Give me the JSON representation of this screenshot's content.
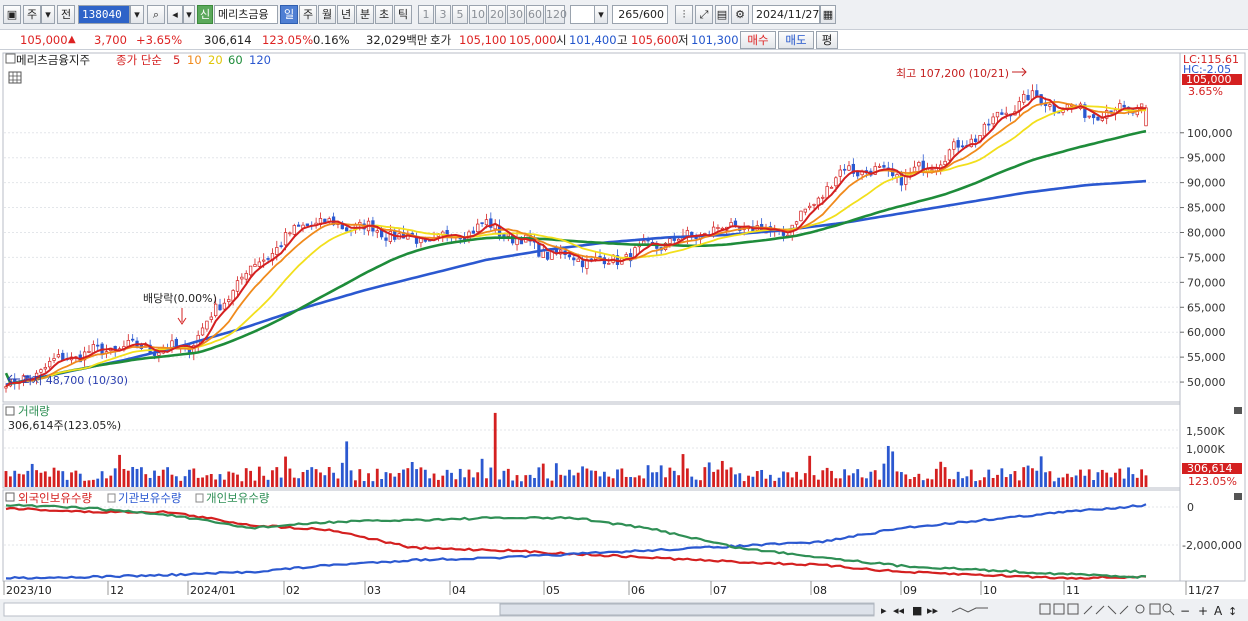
{
  "toolbar": {
    "chu_label": "주",
    "jeon_label": "전",
    "stock_code": "138040",
    "sin_label": "신",
    "stock_name": "메리츠금융",
    "periods": [
      "일",
      "주",
      "월",
      "년",
      "분",
      "초",
      "틱"
    ],
    "selected_period": "일",
    "intervals": [
      "1",
      "3",
      "5",
      "10",
      "20",
      "30",
      "60",
      "120"
    ],
    "count_current": "265",
    "count_total": "/600",
    "date": "2024/11/27"
  },
  "quote": {
    "price": "105,000",
    "change_arrow": "▲",
    "change": "3,700",
    "change_pct": "+3.65%",
    "volume": "306,614",
    "volume_ratio": "123.05%",
    "turnover": "0.16%",
    "amount": "32,029백만",
    "hoga_label": "호가",
    "bid": "105,100",
    "ask": "105,000",
    "open_label": "시",
    "open": "101,400",
    "high_label": "고",
    "high": "105,600",
    "low_label": "저",
    "low": "101,300",
    "buy_label": "매수",
    "sell_label": "매도",
    "eval_label": "평"
  },
  "price_panel": {
    "stock_label": "메리츠금융지주",
    "indicator_label": "종가 단순",
    "ma_periods": [
      "5",
      "10",
      "20",
      "60",
      "120"
    ],
    "ma_colors": [
      "#d42020",
      "#f08a1c",
      "#f2df1c",
      "#1e8c3a",
      "#2b58d0"
    ],
    "y_ticks": [
      "100,000",
      "95,000",
      "90,000",
      "85,000",
      "80,000",
      "75,000",
      "70,000",
      "65,000",
      "60,000",
      "55,000",
      "50,000"
    ],
    "lc_label": "LC:115.61",
    "hc_label": "HC:-2.05",
    "current_price_tag": "105,000",
    "current_pct_tag": "3.65%",
    "high_annotation": "최고 107,200 (10/21)",
    "low_annotation": "최저 48,700 (10/30)",
    "dividend_annotation": "배당락(0.00%)"
  },
  "volume_panel": {
    "title": "거래량",
    "value": "306,614주(123.05%)",
    "y_ticks": [
      "1,500K",
      "1,000K"
    ],
    "current_tag": "306,614",
    "current_pct_tag": "123.05%"
  },
  "holding_panel": {
    "series": [
      "외국인보유수량",
      "기관보유수량",
      "개인보유수량"
    ],
    "series_colors": [
      "#d42020",
      "#2b58d0",
      "#2f8f55"
    ],
    "y_ticks": [
      "0",
      "-2,000,000"
    ]
  },
  "x_axis": {
    "labels": [
      "2023/10",
      "12",
      "2024/01",
      "02",
      "03",
      "04",
      "05",
      "06",
      "07",
      "08",
      "09",
      "10",
      "11",
      "11/27"
    ]
  },
  "chart_data": {
    "type": "line",
    "series": [
      {
        "name": "종가",
        "values": [
          48700,
          55000,
          57000,
          56500,
          72000,
          82000,
          81000,
          78000,
          81500,
          76000,
          74000,
          78000,
          81000,
          80000,
          93000,
          91000,
          98000,
          107200,
          104000,
          105000
        ]
      },
      {
        "name": "120",
        "values": [
          49500,
          52000,
          54500,
          57500,
          61000,
          65000,
          68500,
          71500,
          74500,
          76500,
          78000,
          79000,
          79500,
          80500,
          82000,
          84000,
          86000,
          88000,
          89500,
          90300
        ]
      }
    ],
    "ylim": [
      46000,
      116000
    ]
  }
}
